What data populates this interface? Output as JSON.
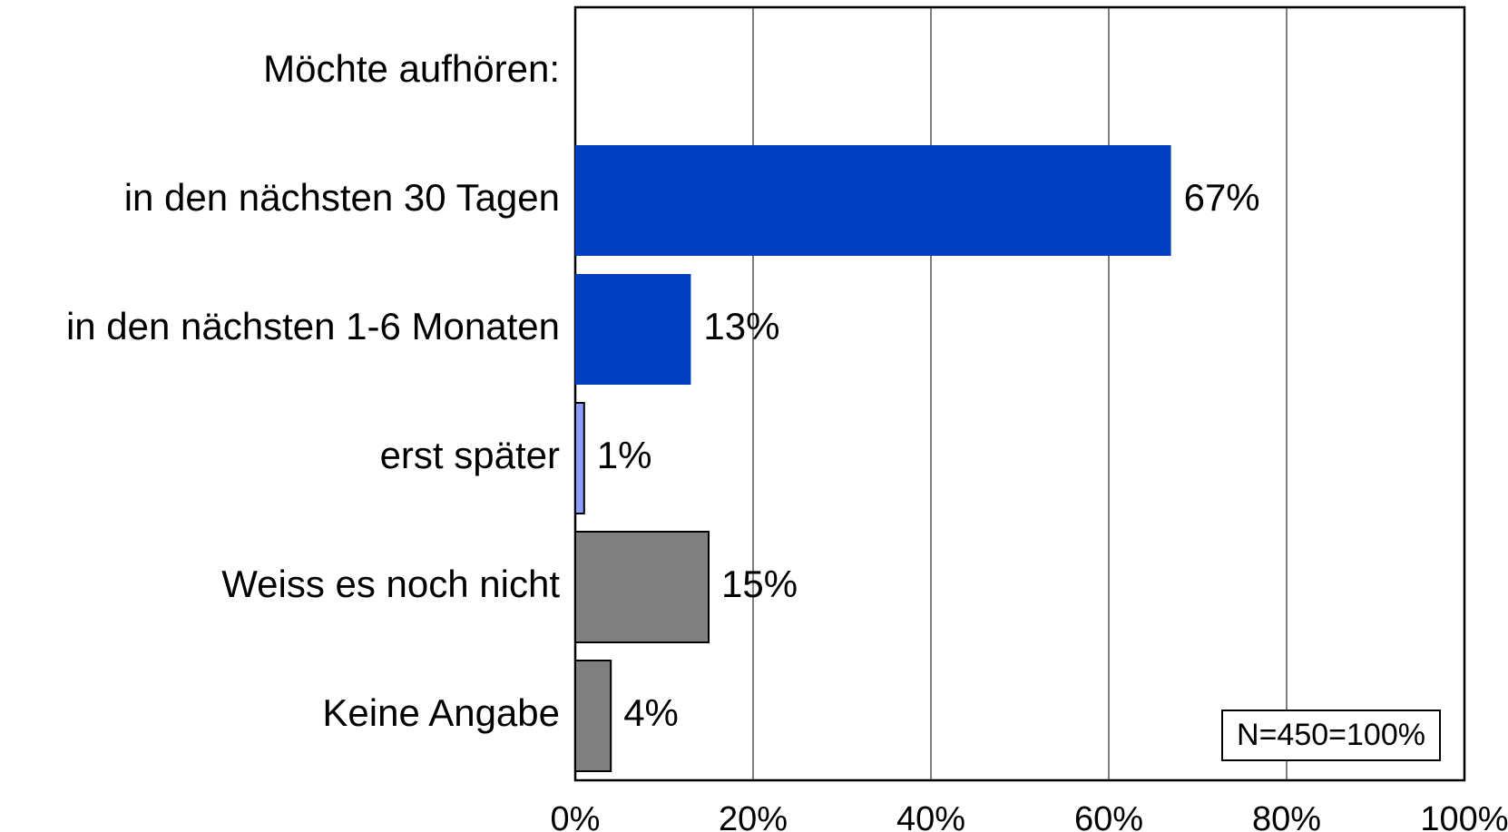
{
  "chart_data": {
    "type": "hbar",
    "categories": [
      "Möchte aufhören:",
      "in den nächsten 30 Tagen",
      "in den nächsten 1-6 Monaten",
      "erst später",
      "Weiss es noch nicht",
      "Keine Angabe"
    ],
    "values": [
      null,
      67,
      13,
      1,
      15,
      4
    ],
    "value_labels": [
      null,
      "67%",
      "13%",
      "1%",
      "15%",
      "4%"
    ],
    "colors": [
      null,
      "#0040c0",
      "#0040c0",
      "#8c9cff",
      "#808080",
      "#808080"
    ],
    "xlim": [
      0,
      100
    ],
    "xticks": [
      {
        "value": 0,
        "label": "0%"
      },
      {
        "value": 20,
        "label": "20%"
      },
      {
        "value": 40,
        "label": "40%"
      },
      {
        "value": 60,
        "label": "60%"
      },
      {
        "value": 80,
        "label": "80%"
      },
      {
        "value": 100,
        "label": "100%"
      }
    ],
    "grid": true,
    "annotation": "N=450=100%"
  }
}
